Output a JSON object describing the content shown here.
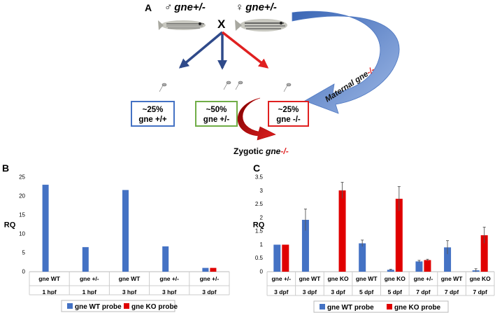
{
  "panel_a": {
    "letter": "A",
    "male_symbol": "♂",
    "female_symbol": "♀",
    "male_genotype": "gne",
    "male_suffix": "+/-",
    "female_genotype": "gne",
    "female_suffix": "+/-",
    "cross": "X",
    "boxes": [
      {
        "pct": "~25%",
        "genotype": "gne +/+",
        "color": "#4472c4"
      },
      {
        "pct": "~50%",
        "genotype": "gne +/-",
        "color": "#70ad47"
      },
      {
        "pct": "~25%",
        "genotype": "gne -/-",
        "color": "#e02020"
      }
    ],
    "zygotic_prefix": "Zygotic ",
    "zygotic_gene": "gne",
    "zygotic_suffix": "-/-",
    "maternal_prefix": "Maternal ",
    "maternal_gene": "gne",
    "maternal_suffix": "-/-",
    "arrow_colors": {
      "blue": "#2f4a8a",
      "red": "#e02020",
      "maternal": "#6a8fd0"
    }
  },
  "chart_data": [
    {
      "panel": "B",
      "type": "bar",
      "ylabel": "RQ",
      "ylim": [
        0,
        25
      ],
      "yticks": [
        0,
        5,
        10,
        15,
        20,
        25
      ],
      "categories": [
        {
          "probe": "gne WT",
          "time": "1 hpf"
        },
        {
          "probe": "gne +/-",
          "time": "1 hpf"
        },
        {
          "probe": "gne WT",
          "time": "3 hpf"
        },
        {
          "probe": "gne +/-",
          "time": "3 hpf"
        },
        {
          "probe": "gne +/-",
          "time": "3 dpf"
        }
      ],
      "series": [
        {
          "name": "gne WT probe",
          "color": "#4472c4",
          "values": [
            23,
            6.5,
            21.6,
            6.7,
            1.0
          ],
          "errors": [
            0,
            0,
            0,
            0,
            0
          ]
        },
        {
          "name": "gne KO probe",
          "color": "#e00000",
          "values": [
            null,
            null,
            null,
            null,
            1.0
          ],
          "errors": [
            0,
            0,
            0,
            0,
            0
          ]
        }
      ],
      "legend_position": "bottom"
    },
    {
      "panel": "C",
      "type": "bar",
      "ylabel": "RQ",
      "ylim": [
        0,
        3.5
      ],
      "yticks": [
        0,
        0.5,
        1,
        1.5,
        2,
        2.5,
        3,
        3.5
      ],
      "categories": [
        {
          "probe": "gne +/-",
          "time": "3 dpf"
        },
        {
          "probe": "gne WT",
          "time": "3 dpf"
        },
        {
          "probe": "gne KO",
          "time": "3 dpf"
        },
        {
          "probe": "gne WT",
          "time": "5 dpf"
        },
        {
          "probe": "gne KO",
          "time": "5 dpf"
        },
        {
          "probe": "gne +/-",
          "time": "7 dpf"
        },
        {
          "probe": "gne WT",
          "time": "7 dpf"
        },
        {
          "probe": "gne KO",
          "time": "7 dpf"
        }
      ],
      "series": [
        {
          "name": "gne WT probe",
          "color": "#4472c4",
          "values": [
            1.0,
            1.92,
            null,
            1.05,
            0.07,
            0.38,
            0.9,
            0.05
          ],
          "errors": [
            0,
            0.4,
            0,
            0.12,
            0.02,
            0.04,
            0.25,
            0.06
          ]
        },
        {
          "name": "gne KO probe",
          "color": "#e00000",
          "values": [
            1.0,
            null,
            3.01,
            null,
            2.7,
            0.43,
            null,
            1.35
          ],
          "errors": [
            0,
            0,
            0.3,
            0,
            0.45,
            0.03,
            0,
            0.3
          ]
        }
      ],
      "legend_position": "bottom"
    }
  ]
}
